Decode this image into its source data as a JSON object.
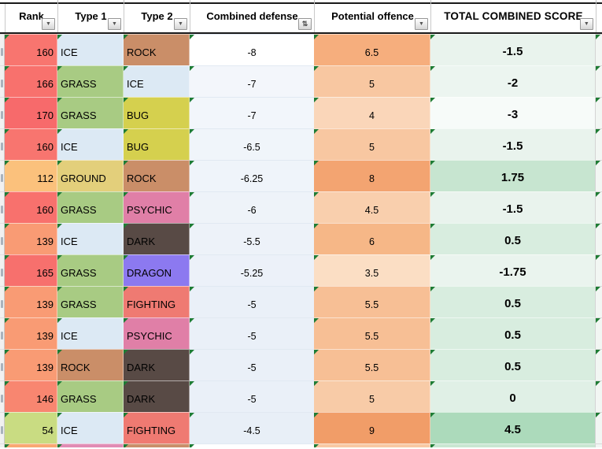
{
  "header": {
    "columns": [
      "Rank",
      "Type 1",
      "Type 2",
      "Combined defense",
      "Potential offence",
      "TOTAL COMBINED SCORE"
    ],
    "filter_icon": "▼",
    "sorted_filter_icon": "⇅"
  },
  "type_colors": {
    "ICE": "#DCE9F4",
    "GRASS": "#A8CB83",
    "ROCK": "#CA8E68",
    "BUG": "#D5D04E",
    "GROUND": "#E3CF7B",
    "PSYCHIC": "#E07FA7",
    "DARK": "#584A45",
    "DRAGON": "#8C79F0",
    "FIGHTING": "#EF7A72"
  },
  "indicator_color": "#1e7c34",
  "chart_data": {
    "type": "table",
    "columns": [
      "Rank",
      "Type 1",
      "Type 2",
      "Combined defense",
      "Potential offence",
      "TOTAL COMBINED SCORE"
    ],
    "rows": [
      [
        160,
        "ICE",
        "ROCK",
        -8,
        6.5,
        -1.5
      ],
      [
        166,
        "GRASS",
        "ICE",
        -7,
        5,
        -2
      ],
      [
        170,
        "GRASS",
        "BUG",
        -7,
        4,
        -3
      ],
      [
        160,
        "ICE",
        "BUG",
        -6.5,
        5,
        -1.5
      ],
      [
        112,
        "GROUND",
        "ROCK",
        -6.25,
        8,
        1.75
      ],
      [
        160,
        "GRASS",
        "PSYCHIC",
        -6,
        4.5,
        -1.5
      ],
      [
        139,
        "ICE",
        "DARK",
        -5.5,
        6,
        0.5
      ],
      [
        165,
        "GRASS",
        "DRAGON",
        -5.25,
        3.5,
        -1.75
      ],
      [
        139,
        "GRASS",
        "FIGHTING",
        -5,
        5.5,
        0.5
      ],
      [
        139,
        "ICE",
        "PSYCHIC",
        -5,
        5.5,
        0.5
      ],
      [
        139,
        "ROCK",
        "DARK",
        -5,
        5.5,
        0.5
      ],
      [
        146,
        "GRASS",
        "DARK",
        -5,
        5,
        0
      ],
      [
        54,
        "ICE",
        "FIGHTING",
        -4.5,
        9,
        4.5
      ]
    ]
  },
  "rows": [
    {
      "rank": 160,
      "rank_color": "#F8756F",
      "type1": "ICE",
      "type2": "ROCK",
      "defense": -8,
      "defense_color": "#FFFFFF",
      "offence": 6.5,
      "offence_color": "#F6AE7D",
      "total": -1.5,
      "total_color": "#E9F3ED"
    },
    {
      "rank": 166,
      "rank_color": "#F8716D",
      "type1": "GRASS",
      "type2": "ICE",
      "defense": -7,
      "defense_color": "#F3F6FB",
      "offence": 5,
      "offence_color": "#F8C7A1",
      "total": -2,
      "total_color": "#ECF5F0"
    },
    {
      "rank": 170,
      "rank_color": "#F76A6B",
      "type1": "GRASS",
      "type2": "BUG",
      "defense": -7,
      "defense_color": "#F2F6FB",
      "offence": 4,
      "offence_color": "#FAD6B9",
      "total": -3,
      "total_color": "#F7FBF9"
    },
    {
      "rank": 160,
      "rank_color": "#F8756F",
      "type1": "ICE",
      "type2": "BUG",
      "defense": -6.5,
      "defense_color": "#F0F5FA",
      "offence": 5,
      "offence_color": "#F8C7A1",
      "total": -1.5,
      "total_color": "#E9F3ED"
    },
    {
      "rank": 112,
      "rank_color": "#FBC17C",
      "type1": "GROUND",
      "type2": "ROCK",
      "defense": -6.25,
      "defense_color": "#EFF4FA",
      "offence": 8,
      "offence_color": "#F3A471",
      "total": 1.75,
      "total_color": "#C7E5D0"
    },
    {
      "rank": 160,
      "rank_color": "#F8716D",
      "type1": "GRASS",
      "type2": "PSYCHIC",
      "defense": -6,
      "defense_color": "#EEF3F9",
      "offence": 4.5,
      "offence_color": "#F9CFAD",
      "total": -1.5,
      "total_color": "#E9F3ED"
    },
    {
      "rank": 139,
      "rank_color": "#F99B74",
      "type1": "ICE",
      "type2": "DARK",
      "defense": -5.5,
      "defense_color": "#EDF2F9",
      "offence": 6,
      "offence_color": "#F6B787",
      "total": 0.5,
      "total_color": "#D8EDDF"
    },
    {
      "rank": 165,
      "rank_color": "#F7706D",
      "type1": "GRASS",
      "type2": "DRAGON",
      "defense": -5.25,
      "defense_color": "#ECF1F9",
      "offence": 3.5,
      "offence_color": "#FBDEC4",
      "total": -1.75,
      "total_color": "#EAF4EE"
    },
    {
      "rank": 139,
      "rank_color": "#F99B74",
      "type1": "GRASS",
      "type2": "FIGHTING",
      "defense": -5,
      "defense_color": "#EAF0F8",
      "offence": 5.5,
      "offence_color": "#F7BF95",
      "total": 0.5,
      "total_color": "#D8EDDF"
    },
    {
      "rank": 139,
      "rank_color": "#F99B74",
      "type1": "ICE",
      "type2": "PSYCHIC",
      "defense": -5,
      "defense_color": "#EAF0F8",
      "offence": 5.5,
      "offence_color": "#F7BF95",
      "total": 0.5,
      "total_color": "#D8EDDF"
    },
    {
      "rank": 139,
      "rank_color": "#F99B74",
      "type1": "ROCK",
      "type2": "DARK",
      "defense": -5,
      "defense_color": "#EAF0F8",
      "offence": 5.5,
      "offence_color": "#F7BF95",
      "total": 0.5,
      "total_color": "#D8EDDF"
    },
    {
      "rank": 146,
      "rank_color": "#F88670",
      "type1": "GRASS",
      "type2": "DARK",
      "defense": -5,
      "defense_color": "#EAF0F8",
      "offence": 5,
      "offence_color": "#F8CBA7",
      "total": 0,
      "total_color": "#E0F0E6"
    },
    {
      "rank": 54,
      "rank_color": "#C9DC82",
      "type1": "ICE",
      "type2": "FIGHTING",
      "defense": -4.5,
      "defense_color": "#E8EFF7",
      "offence": 9,
      "offence_color": "#F19D68",
      "total": 4.5,
      "total_color": "#ACDABB"
    }
  ],
  "partial_row": {
    "rank_color": "#F9A873",
    "type1_color": "#E18CB4",
    "type2_color": "#C98F6B",
    "defense_color": "#FFFFFF",
    "offence_color": "#F8C9A4",
    "total_color": "#C9E6D2"
  }
}
